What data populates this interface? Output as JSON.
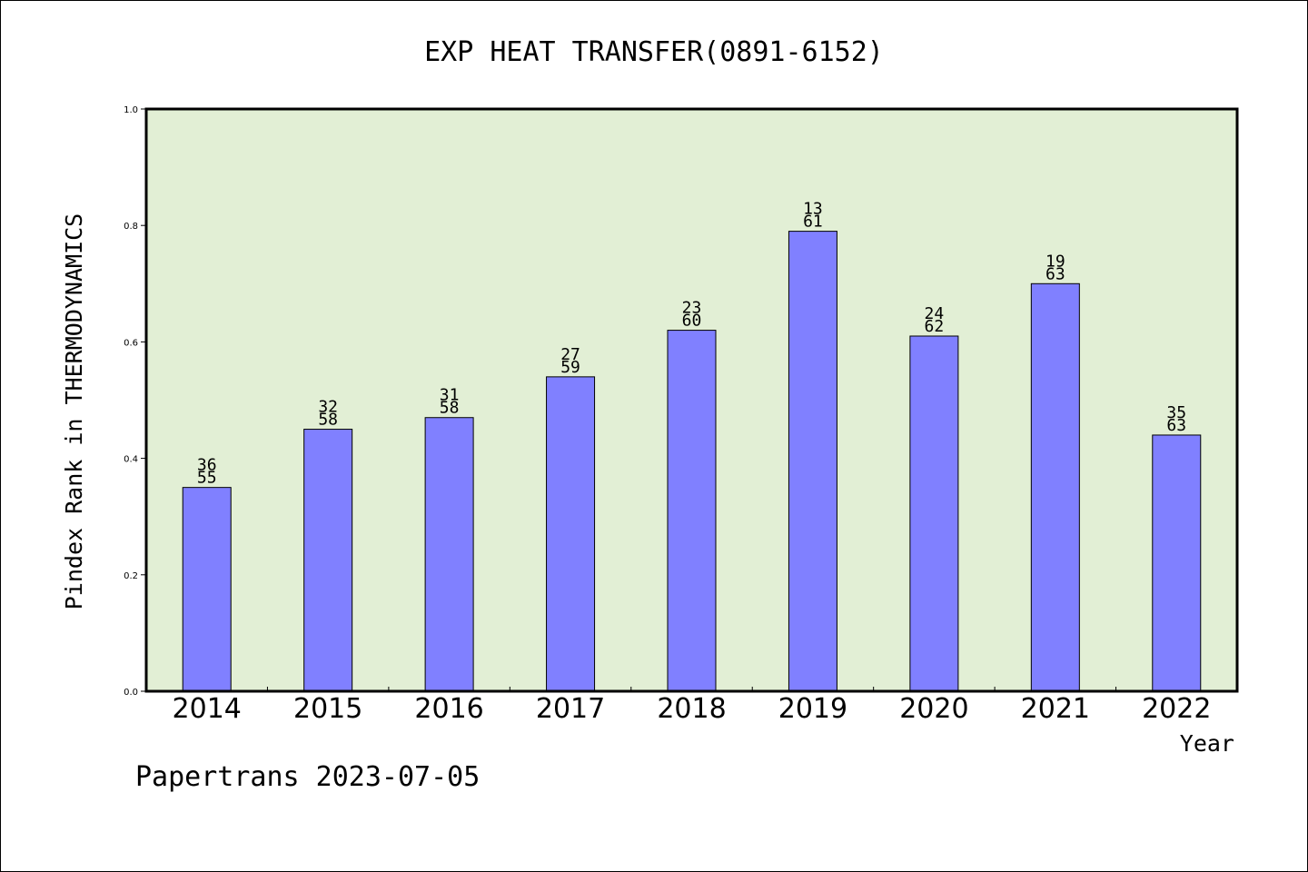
{
  "chart_data": {
    "type": "bar",
    "title": "EXP HEAT TRANSFER(0891-6152)",
    "xlabel": "Year",
    "ylabel": "Pindex Rank in THERMODYNAMICS",
    "footer": "Papertrans 2023-07-05",
    "categories": [
      "2014",
      "2015",
      "2016",
      "2017",
      "2018",
      "2019",
      "2020",
      "2021",
      "2022"
    ],
    "values": [
      0.35,
      0.45,
      0.47,
      0.54,
      0.62,
      0.79,
      0.61,
      0.7,
      0.44
    ],
    "rank_labels": [
      "36",
      "32",
      "31",
      "27",
      "23",
      "13",
      "24",
      "19",
      "35"
    ],
    "total_labels": [
      "55",
      "58",
      "58",
      "59",
      "60",
      "61",
      "62",
      "63",
      "63"
    ],
    "ylim": [
      0,
      1.0
    ],
    "yticks": [
      "0.0",
      "0.2",
      "0.4",
      "0.6",
      "0.8",
      "1.0"
    ],
    "grid": false,
    "colors": {
      "plot_background": "#e2efd5",
      "bar_fill": "#8080ff",
      "bar_stroke": "#000000"
    }
  }
}
